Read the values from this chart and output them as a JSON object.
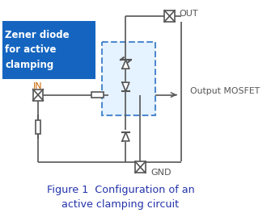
{
  "bg_color": "#ffffff",
  "figure_title": "Figure 1  Configuration of an\nactive clamping circuit",
  "label_color": "#555555",
  "blue_box_color": "#1565C0",
  "blue_box_text": "Zener diode\nfor active\nclamping",
  "dashed_box_color": "#1565C0",
  "dashed_box_fill": "#ddeeff",
  "out_label": "OUT",
  "in_label": "IN",
  "gnd_label": "GND",
  "mosfet_label": "Output MOSFET",
  "wire_color": "#555555",
  "caption_color": "#2233aa"
}
